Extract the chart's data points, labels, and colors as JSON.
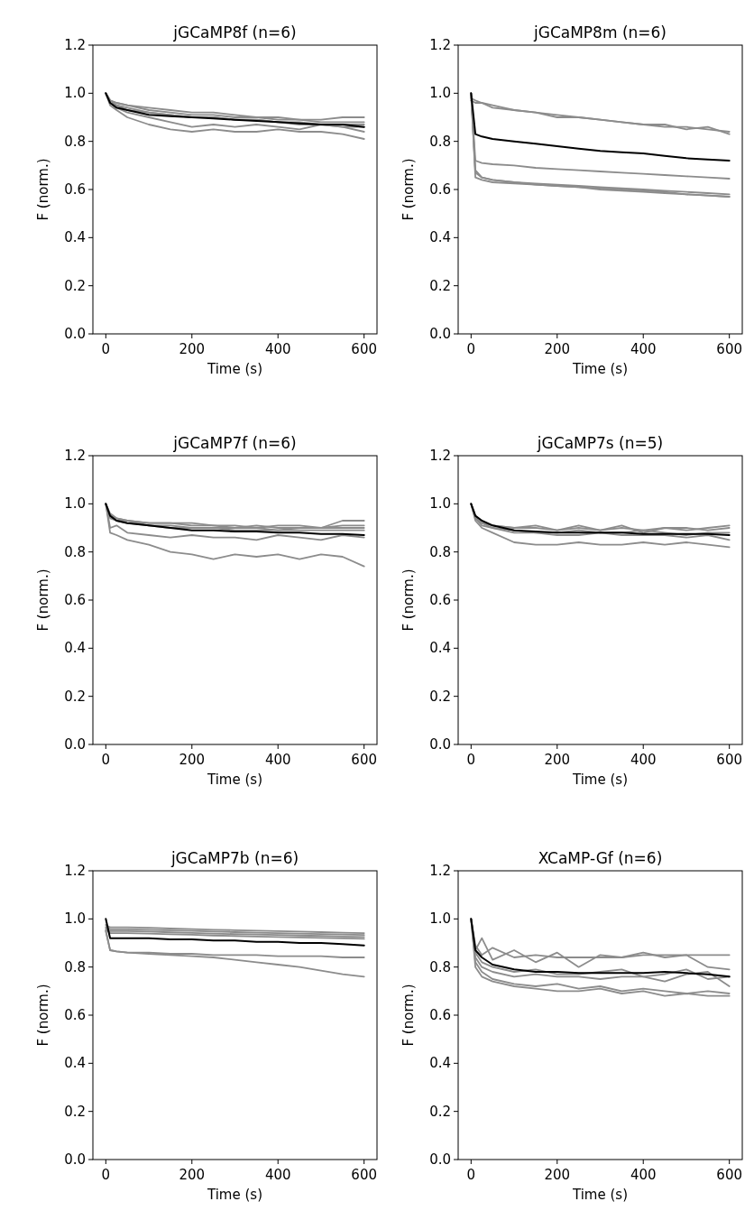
{
  "chart_data": [
    {
      "type": "line",
      "title": "jGCaMP8f (n=6)",
      "xlabel": "Time (s)",
      "ylabel": "F (norm.)",
      "x": [
        0,
        10,
        25,
        50,
        100,
        150,
        200,
        250,
        300,
        350,
        400,
        450,
        500,
        550,
        600
      ],
      "xlim": [
        -30,
        630
      ],
      "ylim": [
        0,
        1.2
      ],
      "xticks": [
        0,
        200,
        400,
        600
      ],
      "yticks": [
        {
          "value": 0,
          "label": "0.0"
        },
        {
          "value": 0.2,
          "label": "0.2"
        },
        {
          "value": 0.4,
          "label": "0.4"
        },
        {
          "value": 0.6,
          "label": "0.6"
        },
        {
          "value": 0.8,
          "label": "0.8"
        },
        {
          "value": 1,
          "label": "1.0"
        },
        {
          "value": 1.2,
          "label": "1.2"
        }
      ],
      "series": [
        {
          "color": "#8c8c8c",
          "values": [
            1.0,
            0.97,
            0.96,
            0.95,
            0.93,
            0.92,
            0.91,
            0.91,
            0.9,
            0.9,
            0.89,
            0.89,
            0.88,
            0.88,
            0.88
          ]
        },
        {
          "color": "#8c8c8c",
          "values": [
            1.0,
            0.97,
            0.96,
            0.95,
            0.94,
            0.93,
            0.92,
            0.92,
            0.91,
            0.9,
            0.9,
            0.89,
            0.89,
            0.9,
            0.9
          ]
        },
        {
          "color": "#8c8c8c",
          "values": [
            1.0,
            0.96,
            0.95,
            0.93,
            0.92,
            0.91,
            0.9,
            0.9,
            0.89,
            0.89,
            0.88,
            0.88,
            0.87,
            0.87,
            0.87
          ]
        },
        {
          "color": "#8c8c8c",
          "values": [
            1.0,
            0.96,
            0.94,
            0.92,
            0.9,
            0.88,
            0.86,
            0.87,
            0.86,
            0.87,
            0.86,
            0.85,
            0.87,
            0.86,
            0.86
          ]
        },
        {
          "color": "#8c8c8c",
          "values": [
            1.0,
            0.95,
            0.93,
            0.9,
            0.87,
            0.85,
            0.84,
            0.85,
            0.84,
            0.84,
            0.85,
            0.84,
            0.84,
            0.83,
            0.81
          ]
        },
        {
          "color": "#8c8c8c",
          "values": [
            1.0,
            0.97,
            0.95,
            0.94,
            0.92,
            0.91,
            0.9,
            0.9,
            0.89,
            0.89,
            0.88,
            0.87,
            0.87,
            0.86,
            0.84
          ]
        },
        {
          "color": "#000000",
          "values": [
            1.0,
            0.96,
            0.94,
            0.93,
            0.91,
            0.905,
            0.9,
            0.895,
            0.89,
            0.885,
            0.88,
            0.875,
            0.87,
            0.87,
            0.86
          ]
        }
      ]
    },
    {
      "type": "line",
      "title": "jGCaMP8m (n=6)",
      "xlabel": "Time (s)",
      "ylabel": "F (norm.)",
      "x": [
        0,
        10,
        25,
        50,
        100,
        150,
        200,
        250,
        300,
        350,
        400,
        450,
        500,
        550,
        600
      ],
      "xlim": [
        -30,
        630
      ],
      "ylim": [
        0,
        1.2
      ],
      "xticks": [
        0,
        200,
        400,
        600
      ],
      "yticks": [
        {
          "value": 0,
          "label": "0.0"
        },
        {
          "value": 0.2,
          "label": "0.2"
        },
        {
          "value": 0.4,
          "label": "0.4"
        },
        {
          "value": 0.6,
          "label": "0.6"
        },
        {
          "value": 0.8,
          "label": "0.8"
        },
        {
          "value": 1,
          "label": "1.0"
        },
        {
          "value": 1.2,
          "label": "1.2"
        }
      ],
      "series": [
        {
          "color": "#8c8c8c",
          "values": [
            0.98,
            0.97,
            0.96,
            0.95,
            0.93,
            0.92,
            0.91,
            0.9,
            0.89,
            0.88,
            0.87,
            0.86,
            0.86,
            0.85,
            0.84
          ]
        },
        {
          "color": "#8c8c8c",
          "values": [
            0.97,
            0.96,
            0.96,
            0.94,
            0.93,
            0.92,
            0.9,
            0.9,
            0.89,
            0.88,
            0.87,
            0.87,
            0.85,
            0.86,
            0.83
          ]
        },
        {
          "color": "#8c8c8c",
          "values": [
            1.0,
            0.72,
            0.71,
            0.705,
            0.7,
            0.69,
            0.685,
            0.68,
            0.675,
            0.67,
            0.665,
            0.66,
            0.655,
            0.65,
            0.645
          ]
        },
        {
          "color": "#8c8c8c",
          "values": [
            1.0,
            0.67,
            0.65,
            0.64,
            0.63,
            0.625,
            0.62,
            0.615,
            0.61,
            0.605,
            0.6,
            0.595,
            0.59,
            0.585,
            0.58
          ]
        },
        {
          "color": "#8c8c8c",
          "values": [
            1.0,
            0.65,
            0.64,
            0.63,
            0.625,
            0.62,
            0.615,
            0.61,
            0.6,
            0.595,
            0.59,
            0.585,
            0.58,
            0.575,
            0.57
          ]
        },
        {
          "color": "#8c8c8c",
          "values": [
            1.0,
            0.68,
            0.65,
            0.64,
            0.63,
            0.62,
            0.615,
            0.61,
            0.605,
            0.6,
            0.595,
            0.59,
            0.58,
            0.575,
            0.57
          ]
        },
        {
          "color": "#000000",
          "values": [
            1.0,
            0.83,
            0.82,
            0.81,
            0.8,
            0.79,
            0.78,
            0.77,
            0.76,
            0.755,
            0.75,
            0.74,
            0.73,
            0.725,
            0.72
          ]
        }
      ]
    },
    {
      "type": "line",
      "title": "jGCaMP7f (n=6)",
      "xlabel": "Time (s)",
      "ylabel": "F (norm.)",
      "x": [
        0,
        10,
        25,
        50,
        100,
        150,
        200,
        250,
        300,
        350,
        400,
        450,
        500,
        550,
        600
      ],
      "xlim": [
        -30,
        630
      ],
      "ylim": [
        0,
        1.2
      ],
      "xticks": [
        0,
        200,
        400,
        600
      ],
      "yticks": [
        {
          "value": 0,
          "label": "0.0"
        },
        {
          "value": 0.2,
          "label": "0.2"
        },
        {
          "value": 0.4,
          "label": "0.4"
        },
        {
          "value": 0.6,
          "label": "0.6"
        },
        {
          "value": 0.8,
          "label": "0.8"
        },
        {
          "value": 1,
          "label": "1.0"
        },
        {
          "value": 1.2,
          "label": "1.2"
        }
      ],
      "series": [
        {
          "color": "#8c8c8c",
          "values": [
            1.0,
            0.95,
            0.93,
            0.93,
            0.92,
            0.92,
            0.91,
            0.91,
            0.9,
            0.91,
            0.9,
            0.9,
            0.9,
            0.91,
            0.91
          ]
        },
        {
          "color": "#8c8c8c",
          "values": [
            1.0,
            0.96,
            0.94,
            0.93,
            0.92,
            0.92,
            0.92,
            0.91,
            0.91,
            0.9,
            0.91,
            0.91,
            0.9,
            0.93,
            0.93
          ]
        },
        {
          "color": "#8c8c8c",
          "values": [
            1.0,
            0.95,
            0.94,
            0.93,
            0.91,
            0.91,
            0.9,
            0.9,
            0.9,
            0.9,
            0.89,
            0.9,
            0.9,
            0.9,
            0.9
          ]
        },
        {
          "color": "#8c8c8c",
          "values": [
            1.0,
            0.94,
            0.93,
            0.92,
            0.91,
            0.9,
            0.9,
            0.9,
            0.89,
            0.89,
            0.89,
            0.89,
            0.89,
            0.89,
            0.89
          ]
        },
        {
          "color": "#8c8c8c",
          "values": [
            1.0,
            0.9,
            0.91,
            0.88,
            0.87,
            0.86,
            0.87,
            0.86,
            0.86,
            0.85,
            0.87,
            0.86,
            0.85,
            0.87,
            0.86
          ]
        },
        {
          "color": "#8c8c8c",
          "values": [
            1.0,
            0.88,
            0.87,
            0.85,
            0.83,
            0.8,
            0.79,
            0.77,
            0.79,
            0.78,
            0.79,
            0.77,
            0.79,
            0.78,
            0.74
          ]
        },
        {
          "color": "#000000",
          "values": [
            1.0,
            0.95,
            0.93,
            0.92,
            0.91,
            0.9,
            0.89,
            0.89,
            0.885,
            0.885,
            0.88,
            0.88,
            0.875,
            0.875,
            0.87
          ]
        }
      ]
    },
    {
      "type": "line",
      "title": "jGCaMP7s (n=5)",
      "xlabel": "Time (s)",
      "ylabel": "F (norm.)",
      "x": [
        0,
        10,
        25,
        50,
        100,
        150,
        200,
        250,
        300,
        350,
        400,
        450,
        500,
        550,
        600
      ],
      "xlim": [
        -30,
        630
      ],
      "ylim": [
        0,
        1.2
      ],
      "xticks": [
        0,
        200,
        400,
        600
      ],
      "yticks": [
        {
          "value": 0,
          "label": "0.0"
        },
        {
          "value": 0.2,
          "label": "0.2"
        },
        {
          "value": 0.4,
          "label": "0.4"
        },
        {
          "value": 0.6,
          "label": "0.6"
        },
        {
          "value": 0.8,
          "label": "0.8"
        },
        {
          "value": 1,
          "label": "1.0"
        },
        {
          "value": 1.2,
          "label": "1.2"
        }
      ],
      "series": [
        {
          "color": "#8c8c8c",
          "values": [
            1.0,
            0.95,
            0.93,
            0.91,
            0.9,
            0.9,
            0.89,
            0.9,
            0.89,
            0.9,
            0.89,
            0.9,
            0.9,
            0.89,
            0.9
          ]
        },
        {
          "color": "#8c8c8c",
          "values": [
            1.0,
            0.94,
            0.92,
            0.91,
            0.9,
            0.91,
            0.89,
            0.91,
            0.89,
            0.91,
            0.88,
            0.9,
            0.89,
            0.9,
            0.91
          ]
        },
        {
          "color": "#8c8c8c",
          "values": [
            1.0,
            0.94,
            0.92,
            0.9,
            0.89,
            0.88,
            0.88,
            0.89,
            0.88,
            0.88,
            0.89,
            0.88,
            0.87,
            0.88,
            0.88
          ]
        },
        {
          "color": "#8c8c8c",
          "values": [
            1.0,
            0.94,
            0.91,
            0.9,
            0.88,
            0.88,
            0.87,
            0.87,
            0.88,
            0.87,
            0.87,
            0.87,
            0.86,
            0.87,
            0.85
          ]
        },
        {
          "color": "#8c8c8c",
          "values": [
            1.0,
            0.93,
            0.9,
            0.88,
            0.84,
            0.83,
            0.83,
            0.84,
            0.83,
            0.83,
            0.84,
            0.83,
            0.84,
            0.83,
            0.82
          ]
        },
        {
          "color": "#000000",
          "values": [
            1.0,
            0.95,
            0.93,
            0.91,
            0.89,
            0.885,
            0.88,
            0.88,
            0.88,
            0.88,
            0.875,
            0.875,
            0.875,
            0.875,
            0.87
          ]
        }
      ]
    },
    {
      "type": "line",
      "title": "jGCaMP7b (n=6)",
      "xlabel": "Time (s)",
      "ylabel": "F (norm.)",
      "x": [
        0,
        10,
        25,
        50,
        100,
        150,
        200,
        250,
        300,
        350,
        400,
        450,
        500,
        550,
        600
      ],
      "xlim": [
        -30,
        630
      ],
      "ylim": [
        0,
        1.2
      ],
      "xticks": [
        0,
        200,
        400,
        600
      ],
      "yticks": [
        {
          "value": 0,
          "label": "0.0"
        },
        {
          "value": 0.2,
          "label": "0.2"
        },
        {
          "value": 0.4,
          "label": "0.4"
        },
        {
          "value": 0.6,
          "label": "0.6"
        },
        {
          "value": 0.8,
          "label": "0.8"
        },
        {
          "value": 1,
          "label": "1.0"
        },
        {
          "value": 1.2,
          "label": "1.2"
        }
      ],
      "series": [
        {
          "color": "#8c8c8c",
          "values": [
            0.975,
            0.965,
            0.965,
            0.965,
            0.963,
            0.96,
            0.958,
            0.955,
            0.953,
            0.951,
            0.949,
            0.947,
            0.945,
            0.943,
            0.941
          ]
        },
        {
          "color": "#8c8c8c",
          "values": [
            0.967,
            0.957,
            0.957,
            0.957,
            0.955,
            0.952,
            0.95,
            0.947,
            0.945,
            0.943,
            0.941,
            0.939,
            0.937,
            0.935,
            0.933
          ]
        },
        {
          "color": "#8c8c8c",
          "values": [
            0.961,
            0.949,
            0.949,
            0.949,
            0.947,
            0.944,
            0.942,
            0.939,
            0.937,
            0.935,
            0.933,
            0.931,
            0.929,
            0.927,
            0.925
          ]
        },
        {
          "color": "#8c8c8c",
          "values": [
            0.955,
            0.941,
            0.941,
            0.941,
            0.939,
            0.936,
            0.934,
            0.931,
            0.929,
            0.927,
            0.925,
            0.923,
            0.921,
            0.919,
            0.917
          ]
        },
        {
          "color": "#8c8c8c",
          "values": [
            0.95,
            0.87,
            0.865,
            0.86,
            0.86,
            0.855,
            0.855,
            0.85,
            0.85,
            0.85,
            0.845,
            0.845,
            0.845,
            0.84,
            0.84
          ]
        },
        {
          "color": "#8c8c8c",
          "values": [
            0.95,
            0.87,
            0.865,
            0.86,
            0.855,
            0.85,
            0.845,
            0.84,
            0.83,
            0.82,
            0.81,
            0.8,
            0.785,
            0.77,
            0.76
          ]
        },
        {
          "color": "#000000",
          "values": [
            1.0,
            0.92,
            0.92,
            0.92,
            0.92,
            0.915,
            0.915,
            0.91,
            0.91,
            0.905,
            0.905,
            0.9,
            0.9,
            0.895,
            0.89
          ]
        }
      ]
    },
    {
      "type": "line",
      "title": "XCaMP-Gf (n=6)",
      "xlabel": "Time (s)",
      "ylabel": "F (norm.)",
      "x": [
        0,
        10,
        25,
        50,
        100,
        150,
        200,
        250,
        300,
        350,
        400,
        450,
        500,
        550,
        600
      ],
      "xlim": [
        -30,
        630
      ],
      "ylim": [
        0,
        1.2
      ],
      "xticks": [
        0,
        200,
        400,
        600
      ],
      "yticks": [
        {
          "value": 0,
          "label": "0.0"
        },
        {
          "value": 0.2,
          "label": "0.2"
        },
        {
          "value": 0.4,
          "label": "0.4"
        },
        {
          "value": 0.6,
          "label": "0.6"
        },
        {
          "value": 0.8,
          "label": "0.8"
        },
        {
          "value": 1,
          "label": "1.0"
        },
        {
          "value": 1.2,
          "label": "1.2"
        }
      ],
      "series": [
        {
          "color": "#8c8c8c",
          "values": [
            1.0,
            0.89,
            0.85,
            0.88,
            0.84,
            0.85,
            0.84,
            0.84,
            0.84,
            0.84,
            0.85,
            0.85,
            0.85,
            0.85,
            0.85
          ]
        },
        {
          "color": "#8c8c8c",
          "values": [
            1.0,
            0.87,
            0.92,
            0.83,
            0.87,
            0.82,
            0.86,
            0.8,
            0.85,
            0.84,
            0.86,
            0.84,
            0.85,
            0.8,
            0.79
          ]
        },
        {
          "color": "#8c8c8c",
          "values": [
            1.0,
            0.86,
            0.82,
            0.8,
            0.78,
            0.79,
            0.77,
            0.77,
            0.78,
            0.79,
            0.76,
            0.77,
            0.79,
            0.75,
            0.76
          ]
        },
        {
          "color": "#8c8c8c",
          "values": [
            1.0,
            0.84,
            0.8,
            0.78,
            0.76,
            0.77,
            0.76,
            0.76,
            0.75,
            0.76,
            0.76,
            0.74,
            0.77,
            0.78,
            0.72
          ]
        },
        {
          "color": "#8c8c8c",
          "values": [
            1.0,
            0.82,
            0.78,
            0.75,
            0.73,
            0.72,
            0.73,
            0.71,
            0.72,
            0.7,
            0.71,
            0.7,
            0.69,
            0.7,
            0.69
          ]
        },
        {
          "color": "#8c8c8c",
          "values": [
            1.0,
            0.8,
            0.76,
            0.74,
            0.72,
            0.71,
            0.7,
            0.7,
            0.71,
            0.69,
            0.7,
            0.68,
            0.69,
            0.68,
            0.68
          ]
        },
        {
          "color": "#000000",
          "values": [
            1.0,
            0.87,
            0.84,
            0.81,
            0.79,
            0.78,
            0.78,
            0.775,
            0.775,
            0.775,
            0.775,
            0.78,
            0.775,
            0.77,
            0.76
          ]
        }
      ]
    }
  ]
}
